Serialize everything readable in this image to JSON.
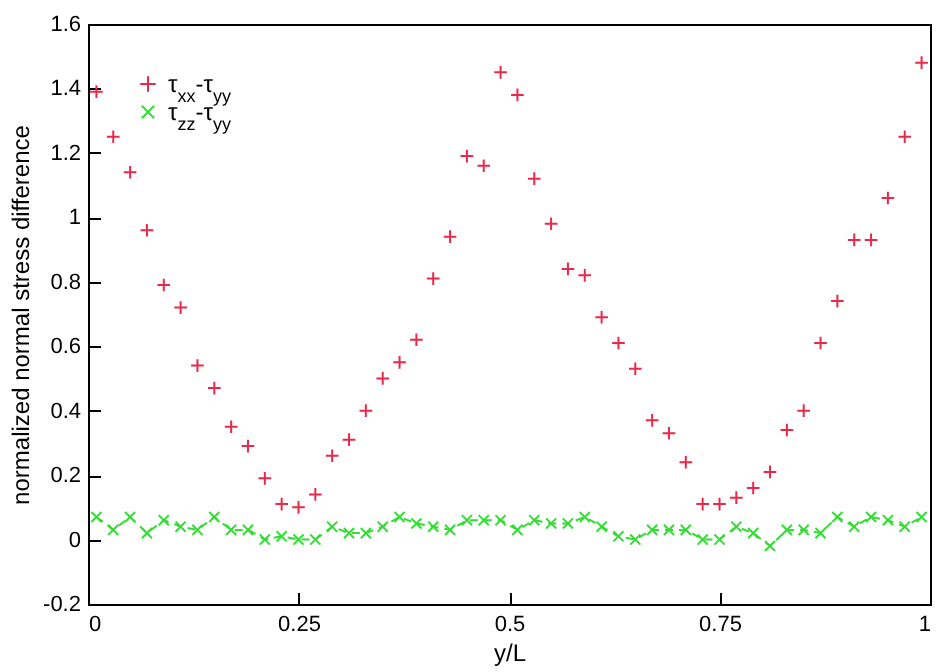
{
  "chart_data": {
    "type": "scatter",
    "xlabel": "y/L",
    "ylabel": "normalized normal stress difference",
    "x": [
      0.01,
      0.03,
      0.05,
      0.07,
      0.09,
      0.11,
      0.13,
      0.15,
      0.17,
      0.19,
      0.21,
      0.23,
      0.25,
      0.27,
      0.29,
      0.31,
      0.33,
      0.35,
      0.37,
      0.39,
      0.41,
      0.43,
      0.45,
      0.47,
      0.49,
      0.51,
      0.53,
      0.55,
      0.57,
      0.59,
      0.61,
      0.63,
      0.65,
      0.67,
      0.69,
      0.71,
      0.73,
      0.75,
      0.77,
      0.79,
      0.81,
      0.83,
      0.85,
      0.87,
      0.89,
      0.91,
      0.93,
      0.95,
      0.97,
      0.99
    ],
    "series": [
      {
        "name": "τ$_{xx}$-τ$_{yy}$",
        "color": "#e8294a",
        "values": [
          1.39,
          1.25,
          1.14,
          0.96,
          0.79,
          0.72,
          0.54,
          0.47,
          0.35,
          0.29,
          0.19,
          0.11,
          0.1,
          0.14,
          0.26,
          0.31,
          0.4,
          0.5,
          0.55,
          0.62,
          0.81,
          0.94,
          1.19,
          1.16,
          1.45,
          1.38,
          1.12,
          0.98,
          0.84,
          0.82,
          0.69,
          0.61,
          0.53,
          0.37,
          0.33,
          0.24,
          0.11,
          0.11,
          0.13,
          0.16,
          0.21,
          0.34,
          0.4,
          0.61,
          0.74,
          0.93,
          0.93,
          1.06,
          1.25,
          1.48
        ]
      },
      {
        "name": "τ$_{zz}$-τ$_{yy}$",
        "color": "#33dd33",
        "type": "line",
        "line_style": "dashed",
        "values": [
          0.07,
          0.03,
          0.07,
          0.02,
          0.06,
          0.04,
          0.03,
          0.07,
          0.03,
          0.03,
          0.0,
          0.01,
          0.0,
          0.0,
          0.04,
          0.02,
          0.02,
          0.04,
          0.07,
          0.05,
          0.04,
          0.03,
          0.06,
          0.06,
          0.06,
          0.03,
          0.06,
          0.05,
          0.05,
          0.07,
          0.04,
          0.01,
          0.0,
          0.03,
          0.03,
          0.03,
          0.0,
          0.0,
          0.04,
          0.02,
          -0.02,
          0.03,
          0.03,
          0.02,
          0.07,
          0.04,
          0.07,
          0.06,
          0.04,
          0.07
        ]
      }
    ],
    "marker": "cross",
    "xlim": [
      0,
      1
    ],
    "xticks": [
      0,
      0.25,
      0.5,
      0.75,
      1
    ],
    "ylim": [
      -0.2,
      1.6
    ],
    "yticks": [
      -0.2,
      0,
      0.2,
      0.4,
      0.6,
      0.8,
      1,
      1.2,
      1.4,
      1.6
    ],
    "grid": false,
    "legend": "top left"
  }
}
